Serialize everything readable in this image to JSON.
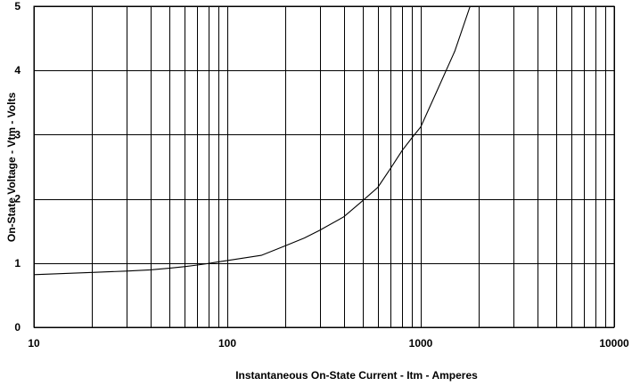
{
  "chart_data": {
    "type": "line",
    "xlabel": "Instantaneous On-State Current  -  Itm  -  Amperes",
    "ylabel": "On-State Voltage  -  Vtm  -  Volts",
    "x_scale": "log",
    "xlim": [
      10,
      10000
    ],
    "ylim": [
      0,
      5
    ],
    "x_tick_labels": [
      "10",
      "100",
      "1000",
      "10000"
    ],
    "y_tick_labels": [
      "0",
      "1",
      "2",
      "3",
      "4",
      "5"
    ],
    "grid": true,
    "series": [
      {
        "x": [
          10,
          20,
          30,
          40,
          50,
          60,
          70,
          80,
          90,
          100,
          150,
          200,
          250,
          300,
          400,
          500,
          600,
          700,
          800,
          900,
          1000,
          1200,
          1500,
          1800
        ],
        "y": [
          0.82,
          0.855,
          0.875,
          0.895,
          0.92,
          0.945,
          0.97,
          0.995,
          1.02,
          1.04,
          1.12,
          1.27,
          1.39,
          1.51,
          1.72,
          1.97,
          2.18,
          2.48,
          2.75,
          2.95,
          3.12,
          3.65,
          4.3,
          5.0
        ]
      }
    ]
  }
}
